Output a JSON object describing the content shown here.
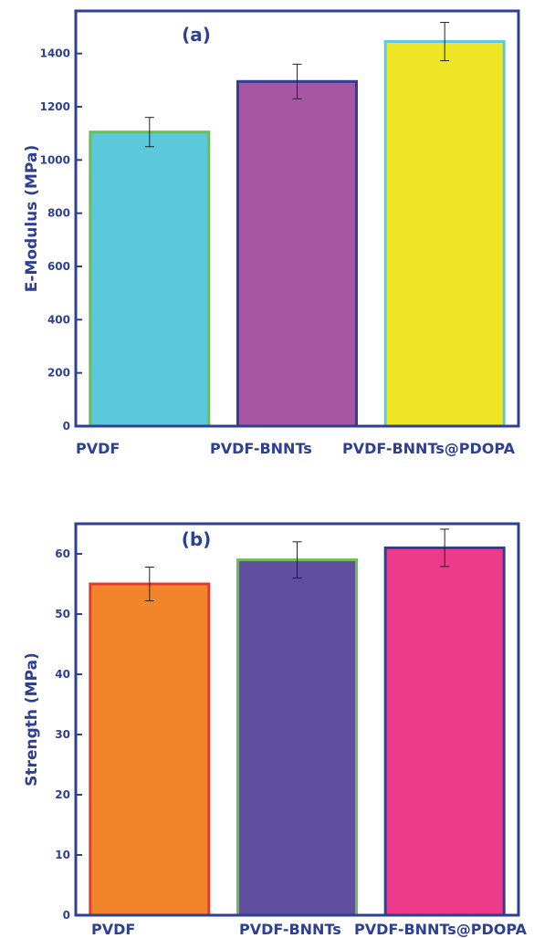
{
  "chart_data": [
    {
      "type": "bar",
      "title": "(a)",
      "xlabel": "",
      "ylabel": "E-Modulus (MPa)",
      "categories": [
        "PVDF",
        "PVDF-BNNTs",
        "PVDF-BNNTs@PDOPA"
      ],
      "values": [
        1105,
        1295,
        1445
      ],
      "errors": [
        55,
        65,
        72
      ],
      "ylim": [
        0,
        1560
      ],
      "yticks": [
        0,
        200,
        400,
        600,
        800,
        1000,
        1200,
        1400
      ],
      "grid": false,
      "legend": "none",
      "colors": {
        "fill": [
          "#5bc8db",
          "#a656a2",
          "#efe626"
        ],
        "edge": [
          "#6cbf4e",
          "#2e3f96",
          "#5bc8e8"
        ],
        "axis": "#2e3f96",
        "text": "#2e3f96"
      }
    },
    {
      "type": "bar",
      "title": "(b)",
      "xlabel": "",
      "ylabel": "Strength (MPa)",
      "categories": [
        "PVDF",
        "PVDF-BNNTs",
        "PVDF-BNNTs@PDOPA"
      ],
      "values": [
        55,
        59,
        61
      ],
      "errors": [
        2.8,
        3.0,
        3.1
      ],
      "ylim": [
        0,
        65
      ],
      "yticks": [
        0,
        10,
        20,
        30,
        40,
        50,
        60
      ],
      "grid": false,
      "legend": "none",
      "colors": {
        "fill": [
          "#f2852b",
          "#604e9e",
          "#ee3a8a"
        ],
        "edge": [
          "#e63a2e",
          "#6cbf4e",
          "#2e3f96"
        ],
        "axis": "#2e3f96",
        "text": "#2e3f96"
      }
    }
  ]
}
